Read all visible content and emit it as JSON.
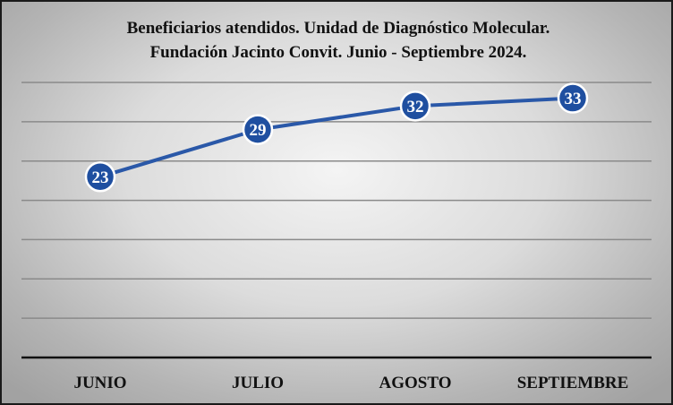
{
  "chart_data": {
    "type": "line",
    "title": "Beneficiarios atendidos. Unidad de Diagnóstico Molecular.",
    "subtitle": "Fundación Jacinto Convit. Junio - Septiembre 2024.",
    "categories": [
      "JUNIO",
      "JULIO",
      "AGOSTO",
      "SEPTIEMBRE"
    ],
    "series": [
      {
        "values": [
          23,
          29,
          32,
          33
        ]
      }
    ],
    "ylim": [
      0,
      35
    ],
    "grid": true,
    "legend": "none",
    "data_labels": true,
    "colors": {
      "line": "#2a58a8",
      "marker": "#1f4fa0",
      "marker_border": "#ffffff"
    }
  }
}
